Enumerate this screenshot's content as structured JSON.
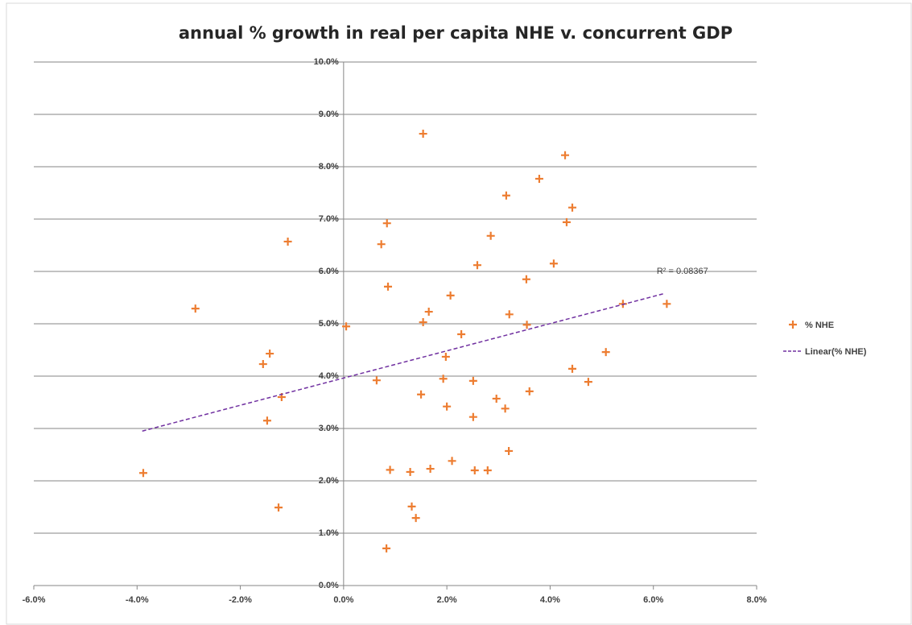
{
  "chart_data": {
    "type": "scatter",
    "title": "annual % growth in real per capita NHE  v.  concurrent GDP",
    "series": [
      {
        "name": "% NHE",
        "color": "#ed7d31",
        "x": [
          -3.88,
          -2.87,
          -1.56,
          -1.43,
          -1.48,
          -1.2,
          -1.26,
          -1.08,
          0.05,
          0.64,
          0.73,
          0.84,
          0.86,
          0.83,
          0.9,
          1.29,
          1.32,
          1.4,
          1.54,
          1.5,
          1.54,
          1.65,
          1.68,
          2.07,
          2.1,
          2.28,
          1.93,
          1.98,
          2.0,
          2.59,
          2.51,
          2.51,
          2.54,
          2.79,
          2.85,
          2.96,
          3.13,
          3.15,
          3.2,
          3.21,
          3.54,
          3.55,
          3.6,
          3.79,
          4.07,
          4.29,
          4.32,
          4.43,
          4.43,
          4.74,
          5.08,
          5.41,
          6.26
        ],
        "values": [
          2.15,
          5.29,
          4.23,
          4.43,
          3.15,
          3.6,
          1.49,
          6.57,
          4.95,
          3.92,
          6.52,
          6.92,
          5.71,
          0.71,
          2.21,
          2.17,
          1.51,
          1.29,
          5.03,
          3.65,
          8.63,
          5.23,
          2.23,
          5.54,
          2.38,
          4.8,
          3.95,
          4.37,
          3.42,
          6.12,
          3.91,
          3.22,
          2.2,
          2.2,
          6.68,
          3.57,
          3.38,
          7.45,
          2.57,
          5.18,
          5.85,
          4.98,
          3.71,
          7.77,
          6.15,
          8.22,
          6.94,
          7.22,
          4.14,
          3.89,
          4.46,
          5.38,
          5.38
        ]
      }
    ],
    "trendline": {
      "name": "Linear(% NHE)",
      "color": "#7030a0",
      "x": [
        -3.9,
        6.22
      ],
      "values": [
        2.95,
        5.58
      ]
    },
    "annotation": "R² = 0.08367",
    "xlim": [
      -6,
      8
    ],
    "xticks": [
      {
        "value": -6,
        "label": "-6.0%"
      },
      {
        "value": -4,
        "label": "-4.0%"
      },
      {
        "value": -2,
        "label": "-2.0%"
      },
      {
        "value": 0,
        "label": "0.0%"
      },
      {
        "value": 2,
        "label": "2.0%"
      },
      {
        "value": 4,
        "label": "4.0%"
      },
      {
        "value": 6,
        "label": "6.0%"
      },
      {
        "value": 8,
        "label": "8.0%"
      }
    ],
    "ylim": [
      0,
      10
    ],
    "yticks": [
      {
        "value": 0,
        "label": "0.0%"
      },
      {
        "value": 1,
        "label": "1.0%"
      },
      {
        "value": 2,
        "label": "2.0%"
      },
      {
        "value": 3,
        "label": "3.0%"
      },
      {
        "value": 4,
        "label": "4.0%"
      },
      {
        "value": 5,
        "label": "5.0%"
      },
      {
        "value": 6,
        "label": "6.0%"
      },
      {
        "value": 7,
        "label": "7.0%"
      },
      {
        "value": 8,
        "label": "8.0%"
      },
      {
        "value": 9,
        "label": "9.0%"
      },
      {
        "value": 10,
        "label": "10.0%"
      }
    ],
    "grid": true,
    "legend": "right"
  }
}
